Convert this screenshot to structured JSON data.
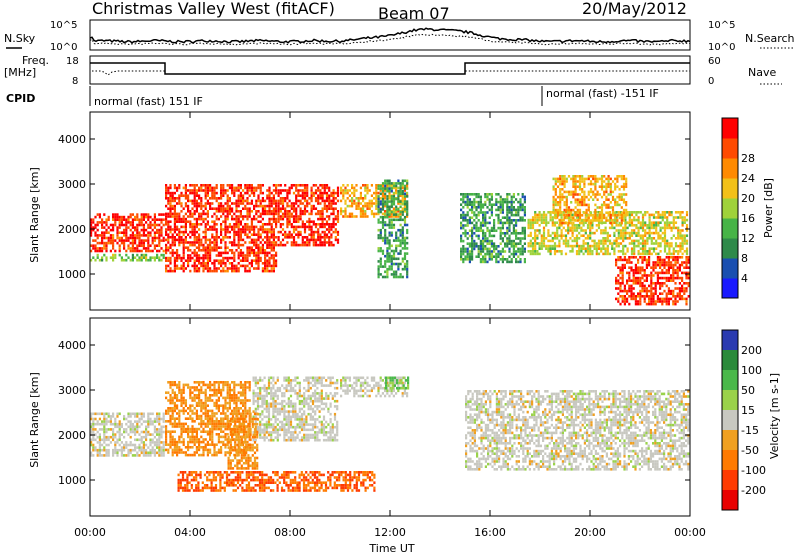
{
  "header": {
    "title": "Christmas Valley West (fitACF)",
    "beam": "Beam 07",
    "date": "20/May/2012"
  },
  "top_panels": {
    "nsky_label": "N.Sky",
    "nsky_ticks": [
      "10^5",
      "10^0"
    ],
    "nsearch_label": "N.Search",
    "nsearch_ticks": [
      "10^5",
      "10^0"
    ],
    "freq_label": "Freq.",
    "freq_unit": "[MHz]",
    "freq_ticks": [
      "18",
      "8"
    ],
    "nave_label": "Nave",
    "nave_ticks": [
      "60",
      "0"
    ],
    "cpid_label": "CPID",
    "cpid_modes": [
      "normal (fast) 151 IF",
      "normal (fast) -151 IF"
    ]
  },
  "chart_data": [
    {
      "type": "heatmap",
      "name": "power",
      "ylabel": "Slant Range [km]",
      "ylim": [
        200,
        4600
      ],
      "yticks": [
        1000,
        2000,
        3000,
        4000
      ],
      "xlim": [
        0,
        24
      ],
      "colorbar": {
        "label": "Power [dB]",
        "ticks": [
          "4",
          "8",
          "12",
          "16",
          "20",
          "24",
          "28"
        ],
        "colors": [
          "#1a1aff",
          "#1a4fb0",
          "#2f8a4a",
          "#47b447",
          "#9fd23a",
          "#f2c018",
          "#ff8a00",
          "#ff4a00",
          "#ff0000"
        ]
      },
      "bands": [
        {
          "t0": 0.0,
          "t1": 3.0,
          "r0": 1450,
          "r1": 2350,
          "level": 28
        },
        {
          "t0": 0.0,
          "t1": 3.0,
          "r0": 1250,
          "r1": 1450,
          "level": 12
        },
        {
          "t0": 3.0,
          "t1": 7.5,
          "r0": 1000,
          "r1": 3000,
          "level": 28
        },
        {
          "t0": 7.5,
          "t1": 10.0,
          "r0": 1600,
          "r1": 3000,
          "level": 28
        },
        {
          "t0": 10.0,
          "t1": 12.8,
          "r0": 2200,
          "r1": 3000,
          "level": 20
        },
        {
          "t0": 11.5,
          "t1": 12.8,
          "r0": 900,
          "r1": 3100,
          "level": 8
        },
        {
          "t0": 14.8,
          "t1": 17.5,
          "r0": 1200,
          "r1": 2800,
          "level": 8
        },
        {
          "t0": 17.5,
          "t1": 24.0,
          "r0": 1400,
          "r1": 2400,
          "level": 16
        },
        {
          "t0": 18.5,
          "t1": 21.5,
          "r0": 2100,
          "r1": 3200,
          "level": 20
        },
        {
          "t0": 21.0,
          "t1": 24.0,
          "r0": 300,
          "r1": 1400,
          "level": 28
        }
      ]
    },
    {
      "type": "heatmap",
      "name": "velocity",
      "ylabel": "Slant Range [km]",
      "ylim": [
        200,
        4600
      ],
      "yticks": [
        1000,
        2000,
        3000,
        4000
      ],
      "xlim": [
        0,
        24
      ],
      "xticks": [
        "00:00",
        "04:00",
        "08:00",
        "12:00",
        "16:00",
        "20:00",
        "00:00"
      ],
      "xlabel": "Time UT",
      "colorbar": {
        "label": "Velocity [m s-1]",
        "ticks": [
          "200",
          "100",
          "50",
          "15",
          "-15",
          "-50",
          "-100",
          "-200"
        ],
        "colors": [
          "#2a3ab0",
          "#2a8a3a",
          "#4ab84a",
          "#9ad24a",
          "#c8c8c0",
          "#f0a020",
          "#ff7a00",
          "#ff3a00",
          "#e80000"
        ]
      },
      "bands": [
        {
          "t0": 0.0,
          "t1": 3.0,
          "r0": 1500,
          "r1": 2500,
          "level": 0
        },
        {
          "t0": 3.0,
          "t1": 6.5,
          "r0": 1500,
          "r1": 3200,
          "level": -50
        },
        {
          "t0": 6.5,
          "t1": 10.0,
          "r0": 1800,
          "r1": 3300,
          "level": 0
        },
        {
          "t0": 5.5,
          "t1": 6.8,
          "r0": 1200,
          "r1": 2500,
          "level": -50
        },
        {
          "t0": 10.0,
          "t1": 12.8,
          "r0": 2800,
          "r1": 3300,
          "level": 0
        },
        {
          "t0": 3.5,
          "t1": 11.5,
          "r0": 700,
          "r1": 1200,
          "level": -100
        },
        {
          "t0": 15.0,
          "t1": 24.0,
          "r0": 1200,
          "r1": 3000,
          "level": 0
        },
        {
          "t0": 11.8,
          "t1": 12.8,
          "r0": 3000,
          "r1": 3300,
          "level": 50
        }
      ]
    }
  ]
}
